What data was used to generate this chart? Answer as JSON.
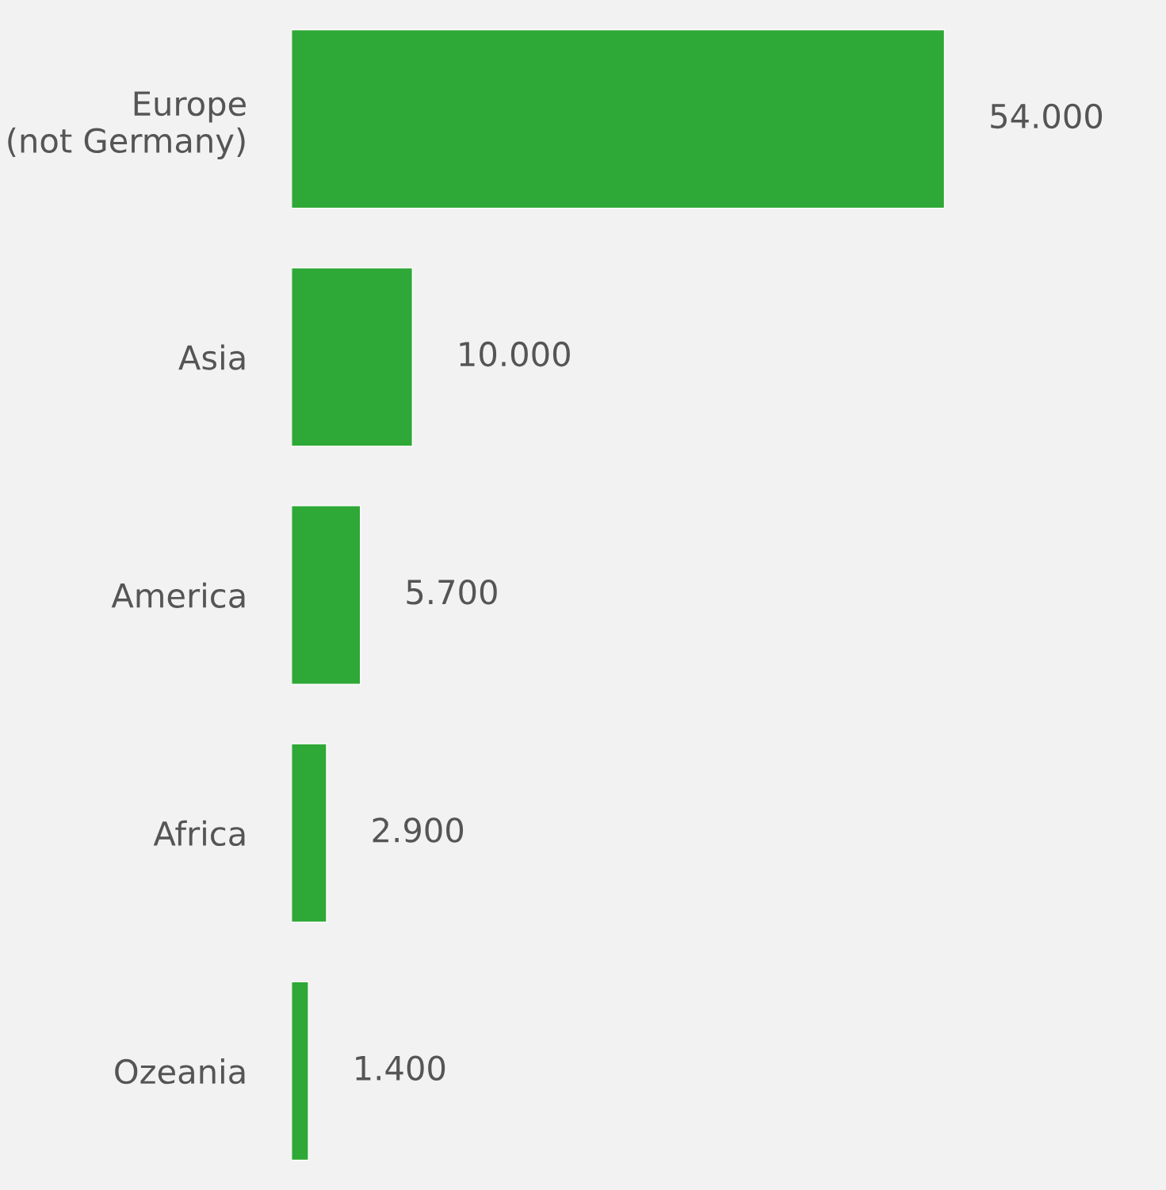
{
  "chart_data": {
    "type": "bar",
    "orientation": "horizontal",
    "categories": [
      "Europe\n(not Germany)",
      "Asia",
      "America",
      "Africa",
      "Ozeania"
    ],
    "values": [
      54000,
      10000,
      5700,
      2900,
      1400
    ],
    "value_labels": [
      "54.000",
      "10.000",
      "5.700",
      "2.900",
      "1.400"
    ],
    "color": "#2ea836",
    "grid": false,
    "legend": false
  }
}
